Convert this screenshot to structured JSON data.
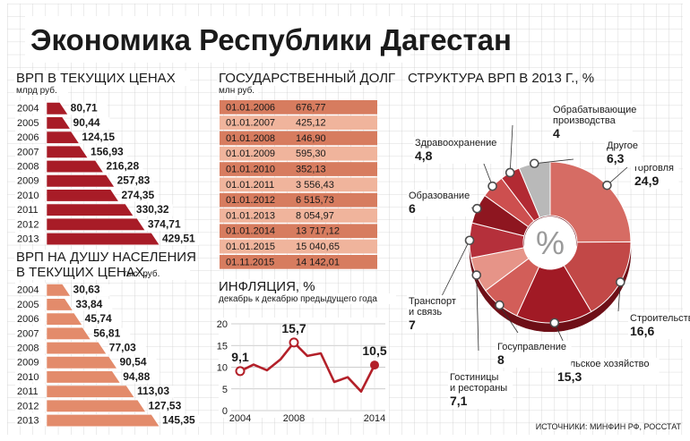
{
  "title": "Экономика Республики Дагестан",
  "source": "ИСТОЧНИКИ: МИНФИН РФ, РОССТАТ",
  "colors": {
    "bar": "#a81c27",
    "bar_light": "#e38b6b",
    "grid": "#c8c8c8",
    "line": "#b32029"
  },
  "chart_data": [
    {
      "type": "bar",
      "title": "ВРП В ТЕКУЩИХ ЦЕНАХ",
      "unit": "млрд руб.",
      "categories": [
        "2004",
        "2005",
        "2006",
        "2007",
        "2008",
        "2009",
        "2010",
        "2011",
        "2012",
        "2013"
      ],
      "values": [
        80.71,
        90.44,
        124.15,
        156.93,
        216.28,
        257.83,
        274.35,
        330.32,
        374.71,
        429.51
      ],
      "labels": [
        "80,71",
        "90,44",
        "124,15",
        "156,93",
        "216,28",
        "257,83",
        "274,35",
        "330,32",
        "374,71",
        "429,51"
      ]
    },
    {
      "type": "bar",
      "title_lines": [
        "ВРП НА ДУШУ НАСЕЛЕНИЯ",
        "В ТЕКУЩИХ ЦЕНАХ,"
      ],
      "unit": "тыс. руб.",
      "categories": [
        "2004",
        "2005",
        "2006",
        "2007",
        "2008",
        "2009",
        "2010",
        "2011",
        "2012",
        "2013"
      ],
      "values": [
        30.63,
        33.84,
        45.74,
        56.81,
        77.03,
        90.54,
        94.88,
        113.03,
        127.53,
        145.35
      ],
      "labels": [
        "30,63",
        "33,84",
        "45,74",
        "56,81",
        "77,03",
        "90,54",
        "94,88",
        "113,03",
        "127,53",
        "145,35"
      ]
    },
    {
      "type": "table",
      "title": "ГОСУДАРСТВЕННЫЙ ДОЛГ",
      "unit": "млн руб.",
      "rows": [
        {
          "date": "01.01.2006",
          "value": "676,77"
        },
        {
          "date": "01.01.2007",
          "value": "425,12"
        },
        {
          "date": "01.01.2008",
          "value": "146,90"
        },
        {
          "date": "01.01.2009",
          "value": "595,30"
        },
        {
          "date": "01.01.2010",
          "value": "352,13"
        },
        {
          "date": "01.01.2011",
          "value": "3 556,43"
        },
        {
          "date": "01.01.2012",
          "value": "6 515,73"
        },
        {
          "date": "01.01.2013",
          "value": "8 054,97"
        },
        {
          "date": "01.01.2014",
          "value": "13 717,12"
        },
        {
          "date": "01.01.2015",
          "value": "15 040,65"
        },
        {
          "date": "01.11.2015",
          "value": "14 142,01"
        }
      ]
    },
    {
      "type": "line",
      "title": "ИНФЛЯЦИЯ, %",
      "subtitle": "декабрь к декабрю предыдущего года",
      "x": [
        2004,
        2005,
        2006,
        2007,
        2008,
        2009,
        2010,
        2011,
        2012,
        2013,
        2014
      ],
      "y": [
        9.1,
        10.6,
        9.3,
        11.8,
        15.7,
        12.6,
        13.2,
        6.6,
        7.7,
        4.4,
        10.5
      ],
      "yticks": [
        "0",
        "5",
        "10",
        "15",
        "20"
      ],
      "ylim": [
        0,
        20
      ],
      "xticks": [
        "2004",
        "2008",
        "2014"
      ],
      "annotated": [
        {
          "x": 2004,
          "label": "9,1"
        },
        {
          "x": 2008,
          "label": "15,7"
        },
        {
          "x": 2014,
          "label": "10,5"
        }
      ]
    },
    {
      "type": "pie",
      "title": "СТРУКТУРА ВРП В 2013 Г., %",
      "center_label": "%",
      "slices": [
        {
          "name": [
            "Торговля"
          ],
          "value": 24.9,
          "label": "24,9",
          "color": "#d66c64"
        },
        {
          "name": [
            "Строительство"
          ],
          "value": 16.6,
          "label": "16,6",
          "color": "#c24847"
        },
        {
          "name": [
            "Сельское хозяйство"
          ],
          "value": 15.3,
          "label": "15,3",
          "color": "#a11a25"
        },
        {
          "name": [
            "Госуправление"
          ],
          "value": 8,
          "label": "8",
          "color": "#d25e59"
        },
        {
          "name": [
            "Гостиницы",
            "и рестораны"
          ],
          "value": 7.1,
          "label": "7,1",
          "color": "#e69488"
        },
        {
          "name": [
            "Транспорт",
            "и связь"
          ],
          "value": 7,
          "label": "7",
          "color": "#b5303b"
        },
        {
          "name": [
            "Образование"
          ],
          "value": 6,
          "label": "6",
          "color": "#8e1620"
        },
        {
          "name": [
            "Здравоохранение"
          ],
          "value": 4.8,
          "label": "4,8",
          "color": "#cd4f4f"
        },
        {
          "name": [
            "Обрабатывающие",
            "производства"
          ],
          "value": 4,
          "label": "4",
          "color": "#b22a33"
        },
        {
          "name": [
            "Другое"
          ],
          "value": 6.3,
          "label": "6,3",
          "color": "#b9b9b9"
        }
      ]
    }
  ]
}
